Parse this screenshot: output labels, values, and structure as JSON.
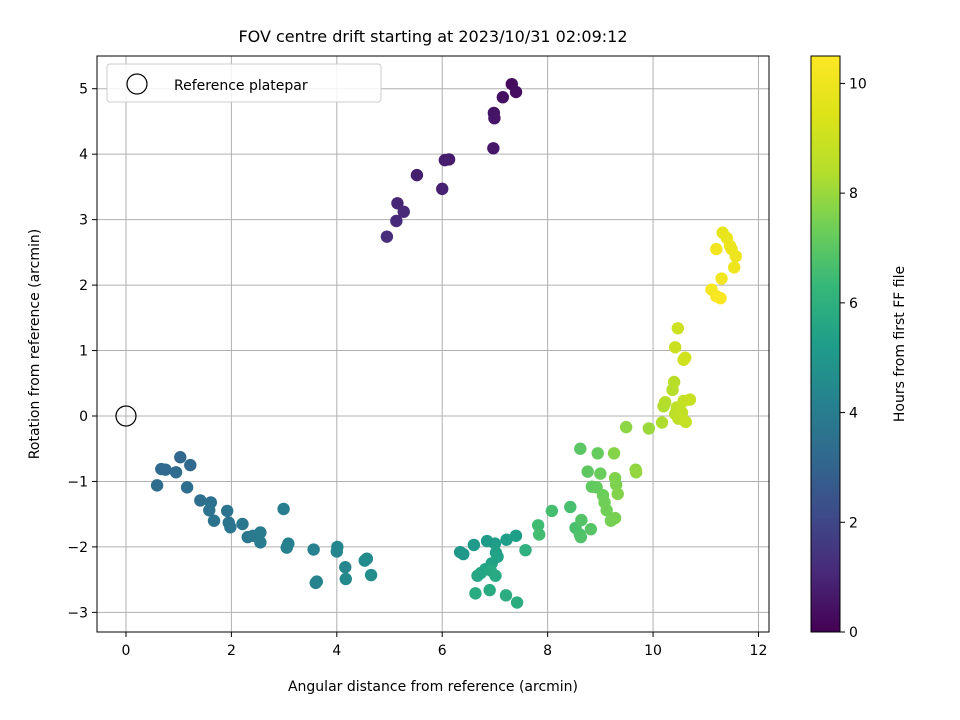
{
  "chart_data": {
    "type": "scatter",
    "title": "FOV centre drift starting at 2023/10/31 02:09:12",
    "xlabel": "Angular distance from reference (arcmin)",
    "ylabel": "Rotation from reference (arcmin)",
    "xlim": [
      -0.55,
      12.2
    ],
    "ylim": [
      -3.3,
      5.5
    ],
    "xticks": [
      0,
      2,
      4,
      6,
      8,
      10,
      12
    ],
    "yticks": [
      -3,
      -2,
      -1,
      0,
      1,
      2,
      3,
      4,
      5
    ],
    "grid": true,
    "legend": {
      "placement": "top-left",
      "label": "Reference platepar"
    },
    "reference_point": {
      "x": 0,
      "y": 0
    },
    "colorbar": {
      "label": "Hours from first FF file",
      "range": [
        0,
        10.5
      ],
      "ticks": [
        0,
        2,
        4,
        6,
        8,
        10
      ],
      "colormap": "viridis"
    },
    "series": [
      {
        "values": [
          [
            7.32,
            5.07
          ],
          [
            7.4,
            4.95
          ],
          [
            7.15,
            4.87
          ],
          [
            6.98,
            4.63
          ],
          [
            6.99,
            4.55
          ],
          [
            6.97,
            4.09
          ],
          [
            6.13,
            3.92
          ],
          [
            6.05,
            3.91
          ],
          [
            5.52,
            3.68
          ],
          [
            6.0,
            3.47
          ],
          [
            5.15,
            3.25
          ],
          [
            5.27,
            3.12
          ],
          [
            5.13,
            2.98
          ],
          [
            4.95,
            2.74
          ]
        ],
        "hours": [
          0.3,
          0.35,
          0.4,
          0.5,
          0.55,
          0.6,
          0.7,
          0.75,
          0.8,
          0.9,
          1.0,
          1.1,
          1.15,
          1.2
        ]
      },
      {
        "values": [
          [
            1.03,
            -0.63
          ],
          [
            1.22,
            -0.75
          ],
          [
            0.67,
            -0.81
          ],
          [
            0.75,
            -0.82
          ],
          [
            0.95,
            -0.86
          ],
          [
            0.59,
            -1.06
          ],
          [
            1.16,
            -1.09
          ],
          [
            1.41,
            -1.29
          ],
          [
            1.61,
            -1.32
          ],
          [
            1.58,
            -1.44
          ],
          [
            1.92,
            -1.45
          ],
          [
            1.67,
            -1.6
          ],
          [
            1.95,
            -1.63
          ],
          [
            1.98,
            -1.7
          ],
          [
            2.21,
            -1.65
          ],
          [
            2.31,
            -1.85
          ],
          [
            2.41,
            -1.83
          ],
          [
            2.55,
            -1.78
          ],
          [
            2.55,
            -1.93
          ],
          [
            2.99,
            -1.42
          ],
          [
            3.08,
            -1.95
          ],
          [
            3.05,
            -2.01
          ],
          [
            3.56,
            -2.04
          ],
          [
            3.6,
            -2.55
          ],
          [
            3.62,
            -2.53
          ],
          [
            4.01,
            -2.0
          ],
          [
            4.0,
            -2.07
          ],
          [
            4.16,
            -2.31
          ],
          [
            4.17,
            -2.49
          ],
          [
            4.57,
            -2.18
          ],
          [
            4.53,
            -2.21
          ],
          [
            4.65,
            -2.43
          ]
        ],
        "hours": [
          3.1,
          3.15,
          3.2,
          3.25,
          3.3,
          3.35,
          3.4,
          3.45,
          3.5,
          3.55,
          3.6,
          3.62,
          3.65,
          3.7,
          3.75,
          3.8,
          3.85,
          3.9,
          3.95,
          4.0,
          4.05,
          4.1,
          4.15,
          4.2,
          4.25,
          4.3,
          4.35,
          4.4,
          4.45,
          4.5,
          4.55,
          4.6
        ]
      },
      {
        "values": [
          [
            6.34,
            -2.08
          ],
          [
            6.4,
            -2.11
          ],
          [
            6.6,
            -1.97
          ],
          [
            6.85,
            -1.91
          ],
          [
            7.0,
            -1.95
          ],
          [
            7.22,
            -1.89
          ],
          [
            7.4,
            -1.83
          ],
          [
            7.02,
            -2.09
          ],
          [
            7.05,
            -2.15
          ],
          [
            6.94,
            -2.25
          ],
          [
            6.82,
            -2.34
          ],
          [
            6.73,
            -2.4
          ],
          [
            6.67,
            -2.44
          ],
          [
            6.92,
            -2.36
          ],
          [
            7.01,
            -2.44
          ],
          [
            6.9,
            -2.66
          ],
          [
            6.63,
            -2.71
          ],
          [
            7.21,
            -2.74
          ],
          [
            7.42,
            -2.85
          ],
          [
            7.58,
            -2.05
          ]
        ],
        "hours": [
          5.0,
          5.05,
          5.1,
          5.15,
          5.2,
          5.25,
          5.3,
          5.35,
          5.4,
          5.45,
          5.5,
          5.55,
          5.6,
          5.65,
          5.7,
          5.75,
          5.8,
          5.85,
          5.9,
          6.0
        ]
      },
      {
        "values": [
          [
            7.82,
            -1.67
          ],
          [
            7.84,
            -1.81
          ],
          [
            8.08,
            -1.45
          ],
          [
            8.43,
            -1.39
          ],
          [
            8.53,
            -1.71
          ],
          [
            8.61,
            -1.81
          ],
          [
            8.63,
            -1.85
          ],
          [
            8.64,
            -1.59
          ],
          [
            8.82,
            -1.73
          ],
          [
            8.62,
            -0.5
          ],
          [
            8.76,
            -0.85
          ],
          [
            8.84,
            -1.08
          ],
          [
            8.93,
            -1.09
          ],
          [
            8.95,
            -0.57
          ],
          [
            9.0,
            -0.88
          ],
          [
            9.05,
            -1.21
          ],
          [
            9.08,
            -1.32
          ],
          [
            9.12,
            -1.44
          ],
          [
            9.2,
            -1.6
          ],
          [
            9.28,
            -1.56
          ],
          [
            9.3,
            -1.05
          ],
          [
            9.28,
            -0.95
          ],
          [
            9.33,
            -1.19
          ],
          [
            9.26,
            -0.57
          ],
          [
            9.49,
            -0.17
          ],
          [
            9.67,
            -0.82
          ],
          [
            9.68,
            -0.86
          ],
          [
            9.92,
            -0.19
          ]
        ],
        "hours": [
          6.5,
          6.55,
          6.6,
          6.65,
          6.7,
          6.75,
          6.8,
          6.85,
          6.9,
          7.0,
          7.05,
          7.1,
          7.15,
          7.2,
          7.25,
          7.3,
          7.35,
          7.4,
          7.45,
          7.5,
          7.55,
          7.6,
          7.65,
          7.7,
          7.8,
          7.85,
          7.9,
          8.0
        ]
      },
      {
        "values": [
          [
            10.17,
            -0.1
          ],
          [
            10.2,
            0.15
          ],
          [
            10.23,
            0.21
          ],
          [
            10.37,
            0.4
          ],
          [
            10.4,
            0.52
          ],
          [
            10.42,
            0.03
          ],
          [
            10.45,
            0.13
          ],
          [
            10.48,
            -0.04
          ],
          [
            10.51,
            0.1
          ],
          [
            10.55,
            0.05
          ],
          [
            10.58,
            0.23
          ],
          [
            10.62,
            -0.09
          ],
          [
            10.7,
            0.25
          ],
          [
            10.42,
            1.05
          ],
          [
            10.47,
            1.34
          ],
          [
            10.58,
            0.86
          ],
          [
            10.61,
            0.89
          ]
        ],
        "hours": [
          8.3,
          8.35,
          8.4,
          8.45,
          8.5,
          8.55,
          8.6,
          8.65,
          8.7,
          8.75,
          8.8,
          8.85,
          8.9,
          8.95,
          9.0,
          9.05,
          9.1
        ]
      },
      {
        "values": [
          [
            11.32,
            2.8
          ],
          [
            11.4,
            2.72
          ],
          [
            11.46,
            2.6
          ],
          [
            11.49,
            2.55
          ],
          [
            11.57,
            2.44
          ],
          [
            11.54,
            2.27
          ],
          [
            11.2,
            2.55
          ],
          [
            11.3,
            2.1
          ],
          [
            11.11,
            1.93
          ],
          [
            11.2,
            1.83
          ],
          [
            11.28,
            1.8
          ]
        ],
        "hours": [
          9.8,
          9.85,
          9.9,
          9.95,
          10.0,
          10.05,
          10.1,
          10.15,
          10.2,
          10.3,
          10.4
        ]
      }
    ]
  }
}
